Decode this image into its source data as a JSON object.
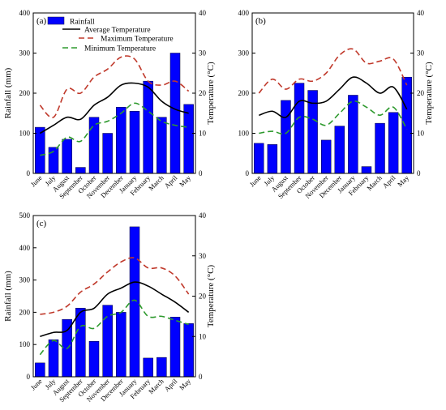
{
  "chart_data": [
    {
      "id": "a",
      "type": "bar",
      "panel_label": "(a)",
      "categories": [
        "June",
        "July",
        "August",
        "September",
        "October",
        "November",
        "December",
        "January",
        "February",
        "March",
        "April",
        "May"
      ],
      "xlabel": "",
      "ylabel": "Rainfall (mm)",
      "y2label": "Temperature (°C)",
      "ylim": [
        0,
        400
      ],
      "y2lim": [
        0,
        40
      ],
      "yticks": [
        0,
        100,
        200,
        300,
        400
      ],
      "y2ticks": [
        0,
        10,
        20,
        30,
        40
      ],
      "legend": {
        "placement": "top-left",
        "entries": [
          "Rainfall",
          "Average Temperature",
          "Maximum Temperature",
          "Minimum Temperature"
        ]
      },
      "series": [
        {
          "name": "Rainfall",
          "kind": "bar",
          "axis": "left",
          "color": "#0000ff",
          "values": [
            115,
            65,
            85,
            15,
            140,
            100,
            165,
            155,
            230,
            140,
            300,
            172
          ]
        },
        {
          "name": "Average Temperature",
          "kind": "line",
          "axis": "right",
          "color": "#000000",
          "values": [
            10,
            12,
            14,
            13.5,
            17,
            19,
            22,
            22.5,
            21.5,
            18,
            16,
            15
          ]
        },
        {
          "name": "Maximum Temperature",
          "kind": "line",
          "axis": "right",
          "color": "#c0392b",
          "values": [
            17,
            14,
            21,
            20,
            24,
            26,
            29,
            28.5,
            23,
            22,
            23,
            20.5
          ]
        },
        {
          "name": "Minimum Temperature",
          "kind": "line",
          "axis": "right",
          "color": "#2e9a2e",
          "values": [
            4.5,
            5.5,
            9,
            8,
            12,
            13,
            15,
            17.5,
            15.5,
            13,
            12,
            11.5
          ]
        }
      ]
    },
    {
      "id": "b",
      "type": "bar",
      "panel_label": "(b)",
      "categories": [
        "June",
        "July",
        "August",
        "September",
        "October",
        "November",
        "December",
        "January",
        "February",
        "March",
        "April",
        "May"
      ],
      "xlabel": "",
      "ylabel": "",
      "y2label": "Temperature (°C)",
      "ylim": [
        0,
        400
      ],
      "y2lim": [
        0,
        40
      ],
      "yticks": [
        0,
        100,
        200,
        300,
        400
      ],
      "y2ticks": [
        0,
        10,
        20,
        30,
        40
      ],
      "series": [
        {
          "name": "Rainfall",
          "kind": "bar",
          "axis": "left",
          "color": "#0000ff",
          "values": [
            75,
            72,
            182,
            225,
            207,
            83,
            118,
            195,
            17,
            125,
            152,
            240
          ]
        },
        {
          "name": "Average Temperature",
          "kind": "line",
          "axis": "right",
          "color": "#000000",
          "values": [
            14.5,
            15.5,
            14,
            18,
            17.5,
            18,
            21,
            24,
            22.5,
            20,
            21.5,
            16
          ]
        },
        {
          "name": "Maximum Temperature",
          "kind": "line",
          "axis": "right",
          "color": "#c0392b",
          "values": [
            20,
            23.5,
            21,
            23.5,
            23,
            25,
            29.5,
            31,
            27.5,
            28,
            28.5,
            22
          ]
        },
        {
          "name": "Minimum Temperature",
          "kind": "line",
          "axis": "right",
          "color": "#2e9a2e",
          "values": [
            10,
            10.5,
            10,
            14,
            13.5,
            12,
            15,
            18,
            16.5,
            14.5,
            16.5,
            11
          ]
        }
      ]
    },
    {
      "id": "c",
      "type": "bar",
      "panel_label": "(c)",
      "categories": [
        "June",
        "July",
        "August",
        "September",
        "October",
        "November",
        "December",
        "January",
        "February",
        "March",
        "April",
        "May"
      ],
      "xlabel": "",
      "ylabel": "Rainfall (mm)",
      "y2label": "Temperature (°C)",
      "ylim": [
        0,
        500
      ],
      "y2lim": [
        0,
        40
      ],
      "yticks": [
        0,
        100,
        200,
        300,
        400,
        500
      ],
      "y2ticks": [
        0,
        10,
        20,
        30,
        40
      ],
      "series": [
        {
          "name": "Rainfall",
          "kind": "bar",
          "axis": "left",
          "color": "#0000ff",
          "values": [
            43,
            115,
            178,
            213,
            110,
            222,
            200,
            465,
            58,
            60,
            185,
            165
          ]
        },
        {
          "name": "Average Temperature",
          "kind": "line",
          "axis": "right",
          "color": "#000000",
          "values": [
            10,
            11,
            11.5,
            16,
            17,
            20.5,
            22,
            23.5,
            22.5,
            20.5,
            18.5,
            16
          ]
        },
        {
          "name": "Maximum Temperature",
          "kind": "line",
          "axis": "right",
          "color": "#c0392b",
          "values": [
            15.5,
            16,
            17.5,
            21,
            23,
            26,
            28.5,
            29.5,
            27,
            27,
            25,
            20.5
          ]
        },
        {
          "name": "Minimum Temperature",
          "kind": "line",
          "axis": "right",
          "color": "#2e9a2e",
          "values": [
            5.5,
            9,
            7,
            12.5,
            12,
            15,
            16,
            19,
            15,
            15,
            14,
            13
          ]
        }
      ]
    }
  ]
}
